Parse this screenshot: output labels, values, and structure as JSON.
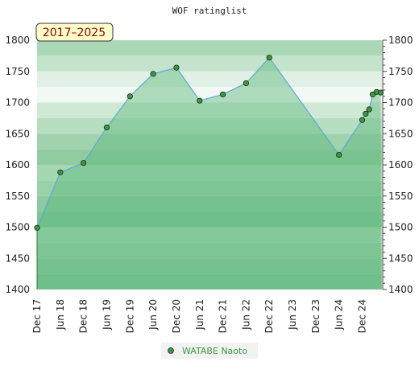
{
  "chart_data": {
    "type": "area",
    "title": "WOF ratinglist",
    "period_badge": "2017–2025",
    "ylim": [
      1400,
      1800
    ],
    "yticks": [
      1400,
      1450,
      1500,
      1550,
      1600,
      1650,
      1700,
      1750,
      1800
    ],
    "x_ticks": [
      "Dec 17",
      "Jun 18",
      "Dec 18",
      "Jun 19",
      "Dec 19",
      "Jun 20",
      "Dec 20",
      "Jun 21",
      "Dec 21",
      "Jun 22",
      "Dec 22",
      "Jun 23",
      "Dec 23",
      "Jun 24",
      "Dec 24"
    ],
    "xlim": [
      0,
      14.85
    ],
    "series": [
      {
        "name": "WATABE Naoto",
        "color": "#5fa8d8",
        "x": [
          0,
          1,
          2,
          3,
          4,
          5,
          6,
          7,
          8,
          9,
          10,
          13,
          14,
          14.15,
          14.3,
          14.45,
          14.62,
          14.8
        ],
        "y": [
          1499,
          1588,
          1603,
          1660,
          1710,
          1746,
          1756,
          1703,
          1713,
          1731,
          1772,
          1616,
          1672,
          1682,
          1689,
          1713,
          1717,
          1716
        ]
      }
    ],
    "grid": true,
    "legend": "bottom-center"
  }
}
